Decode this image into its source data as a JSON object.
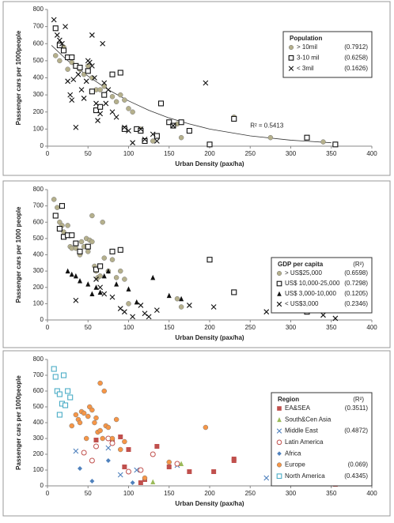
{
  "chart_data": [
    {
      "type": "scatter",
      "x_label": "Urban Density (pax/ha)",
      "y_label": "Passenger cars per 1000people",
      "xlim": [
        0,
        400
      ],
      "xticks": [
        0,
        50,
        100,
        150,
        200,
        250,
        300,
        350,
        400
      ],
      "ylim": [
        0,
        800
      ],
      "yticks": [
        0,
        100,
        200,
        300,
        400,
        500,
        600,
        700,
        800
      ],
      "legend_title": "Population",
      "annotation": "R² = 0.5413",
      "trendline": {
        "x": [
          5,
          25,
          50,
          75,
          100,
          125,
          150,
          175,
          200,
          250,
          300,
          350
        ],
        "values": [
          590,
          500,
          410,
          330,
          265,
          210,
          165,
          130,
          100,
          60,
          35,
          20
        ]
      },
      "series": [
        {
          "name": "> 10mil",
          "r2": "(0.7912)",
          "marker": "circle",
          "color": "#b5b08c",
          "x": [
            10,
            15,
            20,
            25,
            30,
            40,
            45,
            50,
            55,
            60,
            65,
            70,
            80,
            85,
            90,
            95,
            100,
            105,
            115,
            130,
            160,
            165,
            230,
            275,
            340
          ],
          "values": [
            530,
            500,
            580,
            450,
            490,
            450,
            420,
            470,
            400,
            330,
            330,
            350,
            290,
            260,
            300,
            270,
            220,
            200,
            100,
            30,
            130,
            50,
            170,
            50,
            25
          ]
        },
        {
          "name": "3-10 mil",
          "r2": "(0.6258)",
          "marker": "square",
          "color": "#111111",
          "x": [
            10,
            15,
            20,
            25,
            30,
            35,
            40,
            50,
            55,
            60,
            65,
            70,
            80,
            90,
            95,
            110,
            115,
            120,
            135,
            140,
            150,
            155,
            165,
            175,
            200,
            230,
            320,
            355
          ],
          "values": [
            690,
            590,
            560,
            520,
            520,
            470,
            460,
            440,
            320,
            210,
            230,
            300,
            420,
            430,
            100,
            100,
            90,
            30,
            60,
            250,
            140,
            120,
            140,
            90,
            10,
            160,
            50,
            10
          ]
        },
        {
          "name": "< 3mil",
          "r2": "(0.1626)",
          "marker": "x",
          "color": "#111111",
          "x": [
            8,
            12,
            15,
            18,
            22,
            25,
            28,
            30,
            32,
            35,
            38,
            42,
            45,
            48,
            50,
            52,
            55,
            55,
            58,
            60,
            62,
            65,
            68,
            70,
            72,
            75,
            80,
            85,
            95,
            100,
            105,
            115,
            120,
            130,
            135,
            155,
            195
          ],
          "values": [
            740,
            650,
            620,
            600,
            700,
            380,
            300,
            270,
            390,
            110,
            420,
            330,
            280,
            380,
            500,
            490,
            470,
            650,
            400,
            250,
            150,
            190,
            600,
            370,
            250,
            330,
            200,
            170,
            110,
            90,
            20,
            100,
            40,
            70,
            30,
            120,
            370
          ]
        }
      ]
    },
    {
      "type": "scatter",
      "x_label": "Urban Density (pax/ha)",
      "y_label": "Passenger cars per 1000 people",
      "xlim": [
        0,
        400
      ],
      "xticks": [
        0,
        50,
        100,
        150,
        200,
        250,
        300,
        350,
        400
      ],
      "ylim": [
        0,
        800
      ],
      "yticks": [
        0,
        100,
        200,
        300,
        400,
        500,
        600,
        700,
        800
      ],
      "legend_title": "GDP per capita",
      "r2_header": "(R²)",
      "series": [
        {
          "name": "> US$25,000",
          "r2": "(0.6598)",
          "marker": "circle",
          "color": "#b5b08c",
          "x": [
            8,
            12,
            15,
            18,
            20,
            25,
            28,
            30,
            35,
            40,
            42,
            45,
            48,
            50,
            52,
            55,
            55,
            58,
            60,
            62,
            65,
            68,
            70,
            75,
            80,
            85,
            90,
            95,
            100,
            160,
            165
          ],
          "values": [
            740,
            690,
            600,
            580,
            540,
            580,
            450,
            440,
            440,
            400,
            480,
            450,
            500,
            420,
            490,
            640,
            480,
            330,
            300,
            260,
            270,
            600,
            380,
            300,
            370,
            260,
            300,
            250,
            100,
            130,
            80
          ]
        },
        {
          "name": "US$ 10,000-25,000",
          "r2": "(0.7298)",
          "marker": "square",
          "color": "#111111",
          "x": [
            10,
            15,
            18,
            20,
            25,
            30,
            35,
            40,
            50,
            60,
            65,
            80,
            90,
            200,
            230,
            320
          ],
          "values": [
            640,
            560,
            700,
            510,
            520,
            520,
            470,
            420,
            450,
            310,
            330,
            420,
            430,
            370,
            170,
            50
          ]
        },
        {
          "name": "US$ 3,000-10,000",
          "r2": "(0.1205)",
          "marker": "triangle",
          "color": "#111111",
          "x": [
            25,
            30,
            35,
            40,
            50,
            55,
            60,
            65,
            70,
            75,
            85,
            100,
            110,
            130,
            150,
            165
          ],
          "values": [
            300,
            280,
            270,
            240,
            220,
            160,
            200,
            170,
            270,
            300,
            220,
            190,
            110,
            260,
            150,
            130
          ]
        },
        {
          "name": "< US$3,000",
          "r2": "(0.2346)",
          "marker": "x",
          "color": "#111111",
          "x": [
            35,
            60,
            65,
            70,
            80,
            90,
            95,
            105,
            115,
            120,
            125,
            135,
            175,
            205,
            270,
            340,
            355
          ],
          "values": [
            120,
            250,
            200,
            160,
            140,
            70,
            50,
            20,
            90,
            40,
            20,
            60,
            90,
            80,
            50,
            30,
            10
          ]
        }
      ]
    },
    {
      "type": "scatter",
      "x_label": "Urban Density (pax/ha)",
      "y_label": "Passenger cars per 1000people",
      "xlim": [
        0,
        400
      ],
      "xticks": [
        0,
        50,
        100,
        150,
        200,
        250,
        300,
        350,
        400
      ],
      "ylim": [
        0,
        800
      ],
      "yticks": [
        0,
        100,
        200,
        300,
        400,
        500,
        600,
        700,
        800
      ],
      "legend_title": "Region",
      "r2_header": "(R²)",
      "series": [
        {
          "name": "EA&SEA",
          "r2": "(0.3511)",
          "marker": "square-filled",
          "color": "#c0504d",
          "x": [
            60,
            80,
            90,
            95,
            100,
            115,
            120,
            135,
            150,
            175,
            205,
            230,
            230,
            320,
            355
          ],
          "values": [
            290,
            290,
            310,
            120,
            230,
            20,
            40,
            250,
            120,
            90,
            90,
            170,
            160,
            50,
            10
          ]
        },
        {
          "name": "South&Cen Asia",
          "marker": "triangle",
          "color": "#9bbb59",
          "x": [
            130,
            165,
            335
          ],
          "values": [
            25,
            140,
            30
          ]
        },
        {
          "name": "Middle East",
          "r2": "(0.4872)",
          "marker": "x",
          "color": "#4f81bd",
          "x": [
            35,
            75,
            90,
            110,
            160,
            270
          ],
          "values": [
            220,
            240,
            70,
            100,
            130,
            50
          ]
        },
        {
          "name": "Latin America",
          "marker": "open-circle",
          "color": "#c0504d",
          "x": [
            45,
            55,
            60,
            75,
            80,
            100,
            115,
            130,
            160
          ],
          "values": [
            210,
            160,
            250,
            300,
            270,
            90,
            100,
            200,
            140
          ]
        },
        {
          "name": "Africa",
          "marker": "diamond",
          "color": "#4f81bd",
          "x": [
            40,
            55,
            75,
            105
          ],
          "values": [
            110,
            30,
            160,
            20
          ]
        },
        {
          "name": "Europe",
          "r2": "(0.069)",
          "marker": "circle",
          "color": "#f79646",
          "x": [
            30,
            35,
            38,
            40,
            42,
            45,
            48,
            50,
            52,
            55,
            58,
            60,
            62,
            65,
            65,
            68,
            70,
            72,
            75,
            80,
            85,
            90,
            95,
            120,
            150,
            195
          ],
          "values": [
            380,
            450,
            420,
            400,
            470,
            460,
            300,
            440,
            500,
            480,
            400,
            430,
            340,
            650,
            350,
            300,
            600,
            380,
            370,
            300,
            420,
            230,
            280,
            50,
            150,
            370
          ]
        },
        {
          "name": "North America",
          "r2": "(0.4345)",
          "marker": "square",
          "color": "#4bacc6",
          "x": [
            8,
            10,
            12,
            15,
            18,
            20,
            22,
            25,
            15,
            28
          ],
          "values": [
            740,
            690,
            600,
            580,
            520,
            700,
            510,
            600,
            450,
            560
          ]
        }
      ]
    }
  ]
}
